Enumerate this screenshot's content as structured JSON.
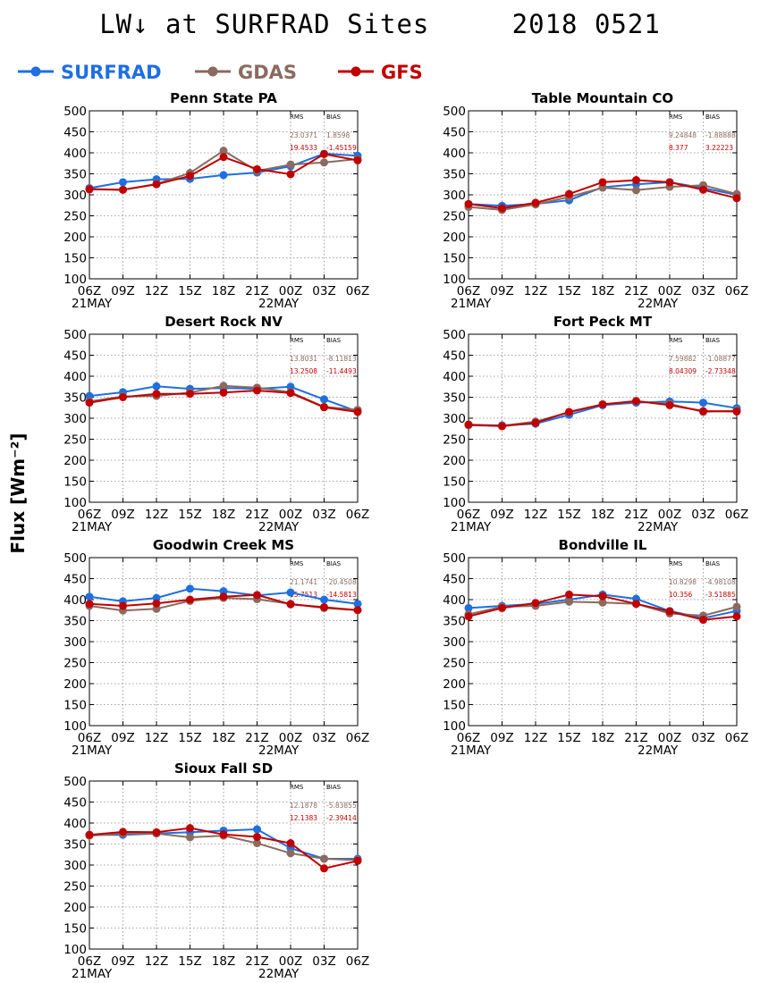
{
  "title": "LW↓ at SURFRAD Sites     2018 0521",
  "ylabel": "Flux [Wm⁻²]",
  "legend": [
    {
      "name": "SURFRAD",
      "color": "#1e6fe0"
    },
    {
      "name": "GDAS",
      "color": "#8b6a5f"
    },
    {
      "name": "GFS",
      "color": "#c00000"
    }
  ],
  "stats_headers": {
    "rms": "RMS",
    "bias": "BIAS"
  },
  "chart_data": [
    {
      "type": "line",
      "title": "Penn State PA",
      "categories": [
        "06Z",
        "09Z",
        "12Z",
        "15Z",
        "18Z",
        "21Z",
        "00Z",
        "03Z",
        "06Z"
      ],
      "date_labels": [
        "21MAY",
        "22MAY"
      ],
      "ylim": [
        100,
        500
      ],
      "yticks": [
        100,
        150,
        200,
        250,
        300,
        350,
        400,
        450,
        500
      ],
      "grid": true,
      "series": [
        {
          "name": "SURFRAD",
          "values": [
            316,
            330,
            337,
            338,
            347,
            353,
            368,
            398,
            393
          ]
        },
        {
          "name": "GDAS",
          "values": [
            314,
            312,
            326,
            352,
            405,
            357,
            372,
            377,
            385
          ]
        },
        {
          "name": "GFS",
          "values": [
            313,
            312,
            325,
            345,
            390,
            361,
            349,
            397,
            382
          ]
        }
      ],
      "stats": {
        "gdas": {
          "rms": "23.0371",
          "bias": "1.8598"
        },
        "gfs": {
          "rms": "19.4533",
          "bias": "-1.45159"
        }
      }
    },
    {
      "type": "line",
      "title": "Table Mountain CO",
      "categories": [
        "06Z",
        "09Z",
        "12Z",
        "15Z",
        "18Z",
        "21Z",
        "00Z",
        "03Z",
        "06Z"
      ],
      "date_labels": [
        "21MAY",
        "22MAY"
      ],
      "ylim": [
        100,
        500
      ],
      "yticks": [
        100,
        150,
        200,
        250,
        300,
        350,
        400,
        450,
        500
      ],
      "grid": true,
      "series": [
        {
          "name": "SURFRAD",
          "values": [
            278,
            274,
            278,
            287,
            318,
            325,
            330,
            316,
            300
          ]
        },
        {
          "name": "GDAS",
          "values": [
            271,
            264,
            277,
            295,
            317,
            311,
            319,
            323,
            302
          ]
        },
        {
          "name": "GFS",
          "values": [
            278,
            268,
            281,
            302,
            330,
            335,
            330,
            312,
            292
          ]
        }
      ],
      "stats": {
        "gdas": {
          "rms": "9.24848",
          "bias": "-1.88888"
        },
        "gfs": {
          "rms": "8.377",
          "bias": "3.22223"
        }
      }
    },
    {
      "type": "line",
      "title": "Desert Rock NV",
      "categories": [
        "06Z",
        "09Z",
        "12Z",
        "15Z",
        "18Z",
        "21Z",
        "00Z",
        "03Z",
        "06Z"
      ],
      "date_labels": [
        "21MAY",
        "22MAY"
      ],
      "ylim": [
        100,
        500
      ],
      "yticks": [
        100,
        150,
        200,
        250,
        300,
        350,
        400,
        450,
        500
      ],
      "grid": true,
      "series": [
        {
          "name": "SURFRAD",
          "values": [
            353,
            362,
            376,
            370,
            372,
            370,
            375,
            345,
            316
          ]
        },
        {
          "name": "GDAS",
          "values": [
            340,
            352,
            353,
            361,
            377,
            373,
            362,
            327,
            320
          ]
        },
        {
          "name": "GFS",
          "values": [
            337,
            350,
            358,
            358,
            361,
            366,
            360,
            326,
            315
          ]
        }
      ],
      "stats": {
        "gdas": {
          "rms": "13.8031",
          "bias": "-8.11813"
        },
        "gfs": {
          "rms": "13.2508",
          "bias": "-11.4493"
        }
      }
    },
    {
      "type": "line",
      "title": "Fort Peck MT",
      "categories": [
        "06Z",
        "09Z",
        "12Z",
        "15Z",
        "18Z",
        "21Z",
        "00Z",
        "03Z",
        "06Z"
      ],
      "date_labels": [
        "21MAY",
        "22MAY"
      ],
      "ylim": [
        100,
        500
      ],
      "yticks": [
        100,
        150,
        200,
        250,
        300,
        350,
        400,
        450,
        500
      ],
      "grid": true,
      "series": [
        {
          "name": "SURFRAD",
          "values": [
            284,
            283,
            287,
            308,
            331,
            337,
            340,
            337,
            324
          ]
        },
        {
          "name": "GDAS",
          "values": [
            283,
            282,
            292,
            314,
            333,
            340,
            334,
            315,
            318
          ]
        },
        {
          "name": "GFS",
          "values": [
            285,
            281,
            289,
            315,
            333,
            341,
            331,
            317,
            316
          ]
        }
      ],
      "stats": {
        "gdas": {
          "rms": "7.59882",
          "bias": "-1.08877"
        },
        "gfs": {
          "rms": "8.04309",
          "bias": "-2.73348"
        }
      }
    },
    {
      "type": "line",
      "title": "Goodwin Creek MS",
      "categories": [
        "06Z",
        "09Z",
        "12Z",
        "15Z",
        "18Z",
        "21Z",
        "00Z",
        "03Z",
        "06Z"
      ],
      "date_labels": [
        "21MAY",
        "22MAY"
      ],
      "ylim": [
        100,
        500
      ],
      "yticks": [
        100,
        150,
        200,
        250,
        300,
        350,
        400,
        450,
        500
      ],
      "grid": true,
      "series": [
        {
          "name": "SURFRAD",
          "values": [
            407,
            396,
            404,
            426,
            420,
            410,
            417,
            400,
            390
          ]
        },
        {
          "name": "GDAS",
          "values": [
            385,
            374,
            378,
            397,
            404,
            401,
            390,
            380,
            375
          ]
        },
        {
          "name": "GFS",
          "values": [
            390,
            385,
            391,
            400,
            407,
            411,
            389,
            382,
            375
          ]
        }
      ],
      "stats": {
        "gdas": {
          "rms": "21.1741",
          "bias": "-20.4508"
        },
        "gfs": {
          "rms": "15.7513",
          "bias": "-14.5813"
        }
      }
    },
    {
      "type": "line",
      "title": "Bondville IL",
      "categories": [
        "06Z",
        "09Z",
        "12Z",
        "15Z",
        "18Z",
        "21Z",
        "00Z",
        "03Z",
        "06Z"
      ],
      "date_labels": [
        "21MAY",
        "22MAY"
      ],
      "ylim": [
        100,
        500
      ],
      "yticks": [
        100,
        150,
        200,
        250,
        300,
        350,
        400,
        450,
        500
      ],
      "grid": true,
      "series": [
        {
          "name": "SURFRAD",
          "values": [
            380,
            385,
            390,
            400,
            412,
            402,
            373,
            356,
            373
          ]
        },
        {
          "name": "GDAS",
          "values": [
            365,
            383,
            385,
            395,
            393,
            390,
            367,
            362,
            383
          ]
        },
        {
          "name": "GFS",
          "values": [
            360,
            380,
            392,
            412,
            408,
            390,
            372,
            352,
            360
          ]
        }
      ],
      "stats": {
        "gdas": {
          "rms": "10.8298",
          "bias": "-4.98108"
        },
        "gfs": {
          "rms": "10.356",
          "bias": "-3.51885"
        }
      }
    },
    {
      "type": "line",
      "title": "Sioux Fall SD",
      "categories": [
        "06Z",
        "09Z",
        "12Z",
        "15Z",
        "18Z",
        "21Z",
        "00Z",
        "03Z",
        "06Z"
      ],
      "date_labels": [
        "21MAY",
        "22MAY"
      ],
      "ylim": [
        100,
        500
      ],
      "yticks": [
        100,
        150,
        200,
        250,
        300,
        350,
        400,
        450,
        500
      ],
      "grid": true,
      "series": [
        {
          "name": "SURFRAD",
          "values": [
            372,
            372,
            375,
            378,
            382,
            385,
            340,
            315,
            315
          ]
        },
        {
          "name": "GDAS",
          "values": [
            370,
            375,
            375,
            366,
            370,
            352,
            328,
            315,
            312
          ]
        },
        {
          "name": "GFS",
          "values": [
            372,
            379,
            378,
            388,
            373,
            367,
            352,
            292,
            310
          ]
        }
      ],
      "stats": {
        "gdas": {
          "rms": "12.1878",
          "bias": "-5.83855"
        },
        "gfs": {
          "rms": "12.1383",
          "bias": "-2.39414"
        }
      }
    }
  ]
}
